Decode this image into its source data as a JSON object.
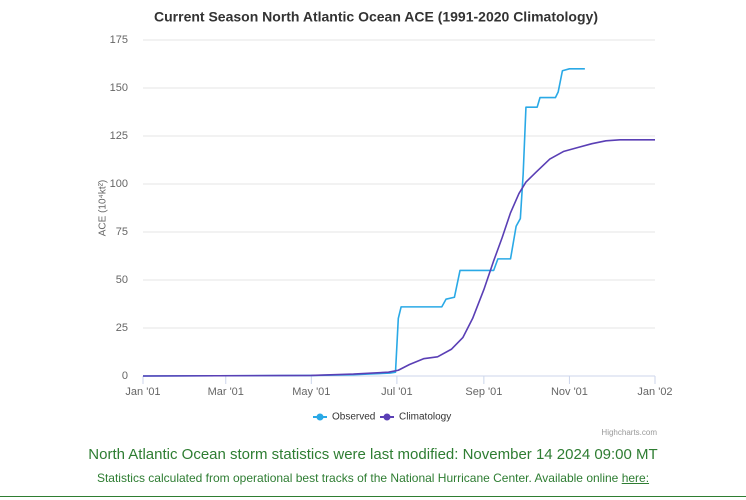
{
  "chart_data": {
    "type": "line",
    "title": "Current Season North Atlantic Ocean ACE (1991-2020 Climatology)",
    "y_label": "ACE (10⁴kt²)",
    "credits": "Highcharts.com",
    "xlim": [
      0,
      365
    ],
    "xticks": [
      {
        "value": 0,
        "label": "Jan '01"
      },
      {
        "value": 59,
        "label": "Mar '01"
      },
      {
        "value": 120,
        "label": "May '01"
      },
      {
        "value": 181,
        "label": "Jul '01"
      },
      {
        "value": 243,
        "label": "Sep '01"
      },
      {
        "value": 304,
        "label": "Nov '01"
      },
      {
        "value": 365,
        "label": "Jan '02"
      }
    ],
    "ylim": [
      0,
      175
    ],
    "yticks": [
      0,
      25,
      50,
      75,
      100,
      125,
      150,
      175
    ],
    "grid": true,
    "legend": "bottom",
    "series": [
      {
        "name": "Observed",
        "color": "#2aa9e6",
        "x": [
          0,
          120,
          150,
          176,
          180,
          182,
          184,
          213,
          216,
          222,
          226,
          250,
          253,
          262,
          266,
          269,
          271,
          273,
          281,
          283,
          294,
          296,
          299,
          304,
          315
        ],
        "values": [
          0,
          0.3,
          0.7,
          1.5,
          2,
          30,
          36,
          36,
          40,
          41,
          55,
          55,
          61,
          61,
          78,
          82,
          105,
          140,
          140,
          145,
          145,
          148,
          159,
          160,
          160
        ]
      },
      {
        "name": "Climatology",
        "color": "#5a3fb5",
        "x": [
          0,
          120,
          150,
          175,
          182,
          190,
          200,
          210,
          220,
          228,
          235,
          243,
          250,
          256,
          262,
          268,
          273,
          280,
          290,
          300,
          310,
          320,
          330,
          340,
          365
        ],
        "values": [
          0,
          0.3,
          1,
          2,
          3,
          6,
          9,
          10,
          14,
          20,
          30,
          45,
          60,
          72,
          85,
          95,
          101,
          106,
          113,
          117,
          119,
          121,
          122.5,
          123,
          123
        ]
      }
    ]
  },
  "footer": {
    "modified": "North Atlantic Ocean storm statistics were last modified: November 14 2024 09:00 MT",
    "source": "Statistics calculated from operational best tracks of the National Hurricane Center. Available online",
    "link": "here:"
  }
}
